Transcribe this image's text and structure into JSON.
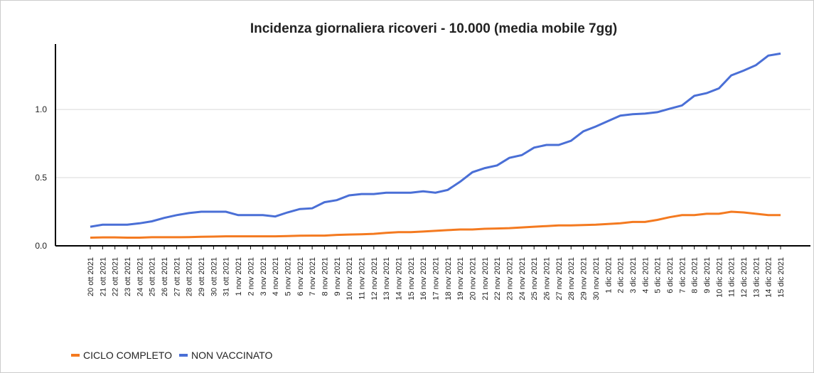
{
  "chart_data": {
    "type": "line",
    "title": "Incidenza giornaliera ricoveri - 10.000 (media mobile 7gg)",
    "categories": [
      "20 ott 2021",
      "21 ott 2021",
      "22 ott 2021",
      "23 ott 2021",
      "24 ott 2021",
      "25 ott 2021",
      "26 ott 2021",
      "27 ott 2021",
      "28 ott 2021",
      "29 ott 2021",
      "30 ott 2021",
      "31 ott 2021",
      "1 nov 2021",
      "2 nov 2021",
      "3 nov 2021",
      "4 nov 2021",
      "5 nov 2021",
      "6 nov 2021",
      "7 nov 2021",
      "8 nov 2021",
      "9 nov 2021",
      "10 nov 2021",
      "11 nov 2021",
      "12 nov 2021",
      "13 nov 2021",
      "14 nov 2021",
      "15 nov 2021",
      "16 nov 2021",
      "17 nov 2021",
      "18 nov 2021",
      "19 nov 2021",
      "20 nov 2021",
      "21 nov 2021",
      "22 nov 2021",
      "23 nov 2021",
      "24 nov 2021",
      "25 nov 2021",
      "26 nov 2021",
      "27 nov 2021",
      "28 nov 2021",
      "29 nov 2021",
      "30 nov 2021",
      "1 dic 2021",
      "2 dic 2021",
      "3 dic 2021",
      "4 dic 2021",
      "5 dic 2021",
      "6 dic 2021",
      "7 dic 2021",
      "8 dic 2021",
      "9 dic 2021",
      "10 dic 2021",
      "11 dic 2021",
      "12 dic 2021",
      "13 dic 2021",
      "14 dic 2021",
      "15 dic 2021"
    ],
    "series": [
      {
        "name": "CICLO COMPLETO",
        "color": "#f47a20",
        "values": [
          0.06,
          0.062,
          0.062,
          0.06,
          0.06,
          0.063,
          0.063,
          0.063,
          0.064,
          0.066,
          0.068,
          0.07,
          0.07,
          0.07,
          0.07,
          0.07,
          0.072,
          0.074,
          0.075,
          0.075,
          0.08,
          0.083,
          0.085,
          0.088,
          0.095,
          0.1,
          0.1,
          0.105,
          0.11,
          0.115,
          0.12,
          0.12,
          0.125,
          0.127,
          0.13,
          0.135,
          0.14,
          0.145,
          0.15,
          0.15,
          0.152,
          0.155,
          0.16,
          0.165,
          0.175,
          0.175,
          0.19,
          0.21,
          0.225,
          0.225,
          0.235,
          0.235,
          0.25,
          0.245,
          0.235,
          0.225,
          0.225
        ]
      },
      {
        "name": "NON VACCINATO",
        "color": "#4a6fd6",
        "values": [
          0.14,
          0.155,
          0.155,
          0.155,
          0.165,
          0.18,
          0.205,
          0.225,
          0.24,
          0.25,
          0.25,
          0.25,
          0.225,
          0.225,
          0.225,
          0.215,
          0.245,
          0.27,
          0.275,
          0.32,
          0.335,
          0.37,
          0.38,
          0.38,
          0.39,
          0.39,
          0.39,
          0.4,
          0.39,
          0.41,
          0.47,
          0.54,
          0.57,
          0.59,
          0.645,
          0.665,
          0.72,
          0.74,
          0.74,
          0.77,
          0.84,
          0.875,
          0.915,
          0.955,
          0.965,
          0.97,
          0.98,
          1.005,
          1.03,
          1.1,
          1.12,
          1.155,
          1.25,
          1.285,
          1.325,
          1.395,
          1.41
        ]
      }
    ],
    "ylim": [
      0,
      1.48
    ],
    "yticks": [
      {
        "value": 0,
        "label": "0.0"
      },
      0.5,
      {
        "value": 1,
        "label": "1.0"
      }
    ],
    "grid": true,
    "legend": "bottom-left"
  }
}
